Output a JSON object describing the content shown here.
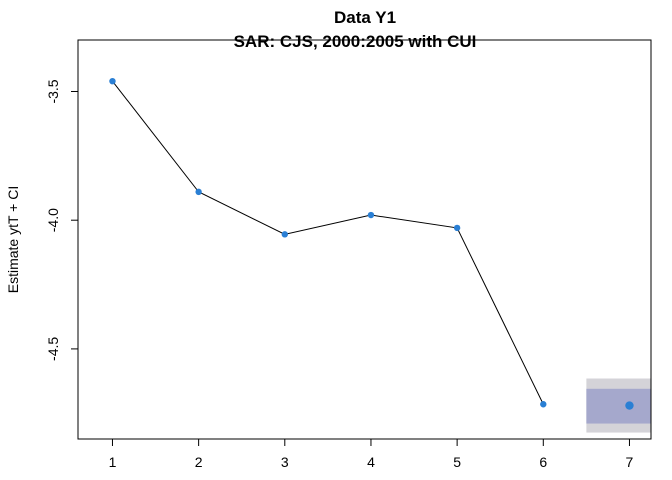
{
  "chart_data": {
    "type": "line",
    "title": "Data Y1",
    "subtitle": "SAR: CJS, 2000:2005 with CUI",
    "xlabel": "",
    "ylabel": "Estimate ytT + CI",
    "xlim": [
      0.6,
      7.25
    ],
    "ylim": [
      -4.85,
      -3.3
    ],
    "x_ticks": [
      1,
      2,
      3,
      4,
      5,
      6,
      7
    ],
    "x_tick_labels": [
      "1",
      "2",
      "3",
      "4",
      "5",
      "6",
      "7"
    ],
    "y_ticks": [
      -3.5,
      -4.0,
      -4.5
    ],
    "y_tick_labels": [
      "-3.5",
      "-4.0",
      "-4.5"
    ],
    "grid": false,
    "series": [
      {
        "x": [
          1,
          2,
          3,
          4,
          5,
          6
        ],
        "y": [
          -3.46,
          -3.89,
          -4.055,
          -3.98,
          -4.03,
          -4.715
        ],
        "line_color": "#000000",
        "point_color": "#2a7fd4"
      }
    ],
    "forecast": {
      "x": 7,
      "y": -4.72,
      "ci_outer": [
        -4.825,
        -4.615
      ],
      "ci_inner": [
        -4.79,
        -4.655
      ],
      "x_extent": [
        6.5,
        7.25
      ],
      "outer_color": "#d4d3d8",
      "inner_color": "#a5a8cc",
      "point_color": "#2a7fd4"
    }
  }
}
